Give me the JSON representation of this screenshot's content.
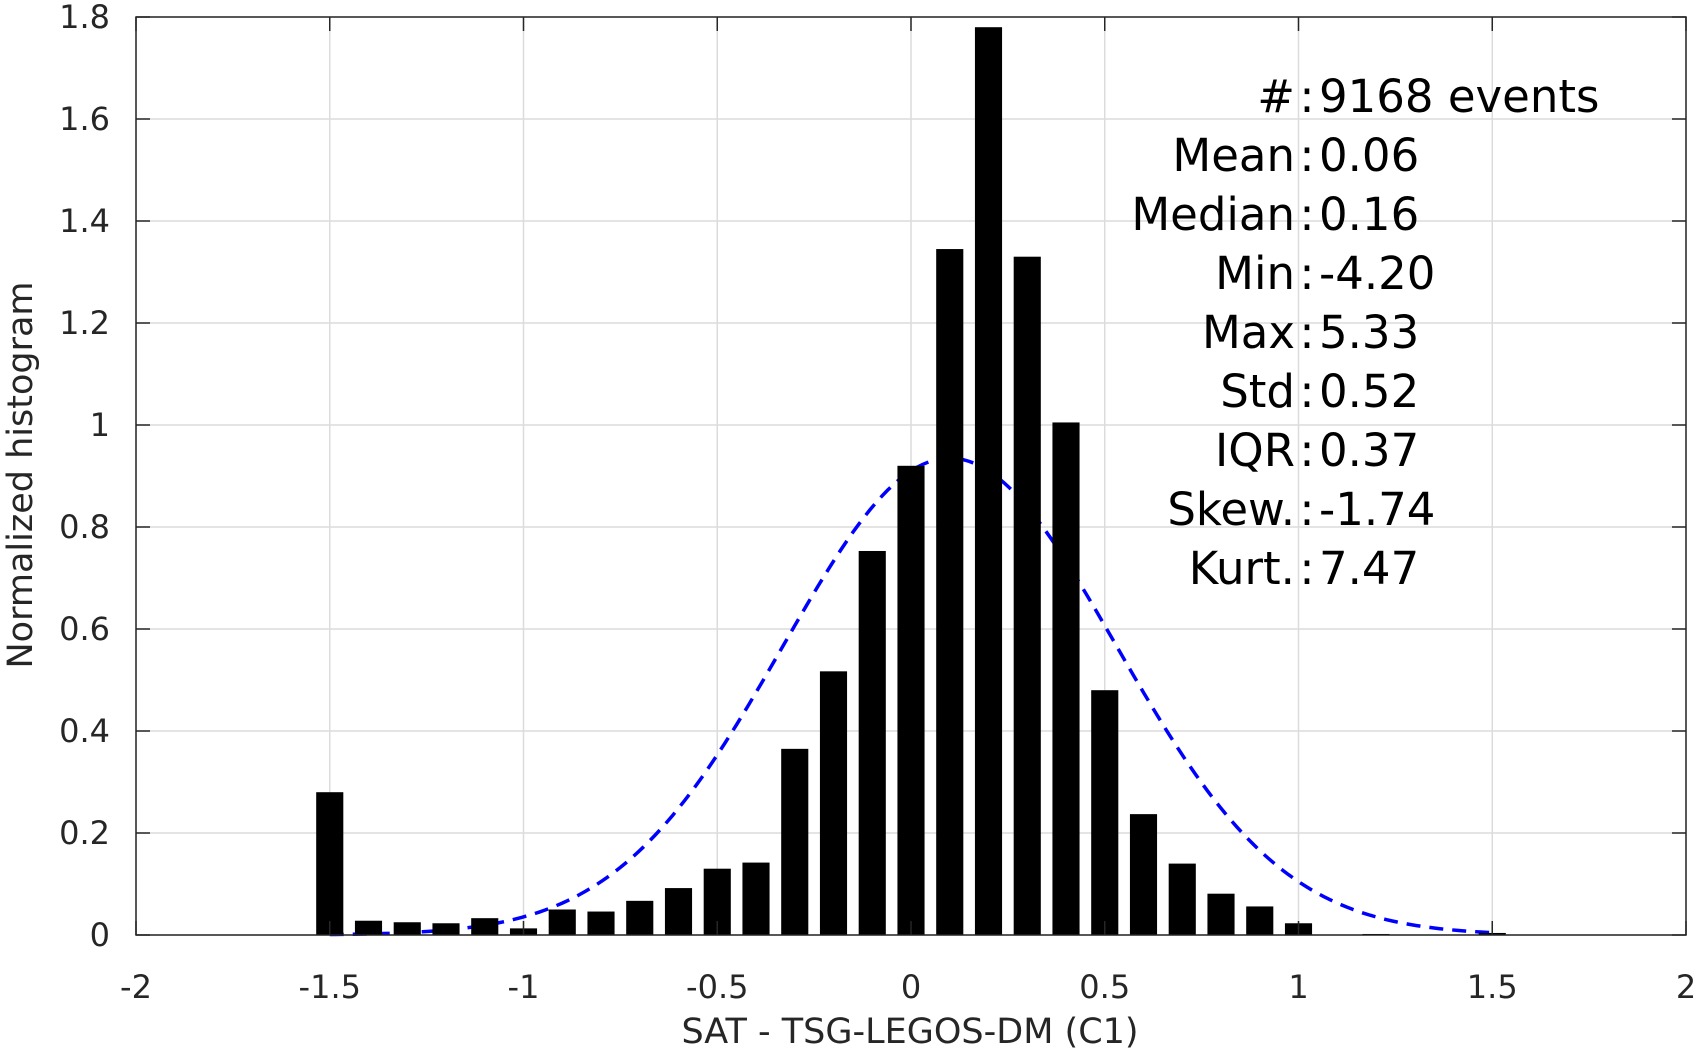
{
  "chart_data": {
    "type": "bar",
    "title": "",
    "xlabel": "SAT - TSG-LEGOS-DM (C1)",
    "ylabel": "Normalized histogram",
    "xlim": [
      -2,
      2
    ],
    "ylim": [
      0,
      1.8
    ],
    "xticks": [
      -2,
      -1.5,
      -1,
      -0.5,
      0,
      0.5,
      1,
      1.5,
      2
    ],
    "xtick_labels": [
      "-2",
      "-1.5",
      "-1",
      "-0.5",
      "0",
      "0.5",
      "1",
      "1.5",
      "2"
    ],
    "yticks": [
      0,
      0.2,
      0.4,
      0.6,
      0.8,
      1,
      1.2,
      1.4,
      1.6,
      1.8
    ],
    "ytick_labels": [
      "0",
      "0.2",
      "0.4",
      "0.6",
      "0.8",
      "1",
      "1.2",
      "1.4",
      "1.6",
      "1.8"
    ],
    "grid": true,
    "bar_width": 0.07,
    "bins": [
      {
        "x": -1.5,
        "y": 0.28
      },
      {
        "x": -1.4,
        "y": 0.028
      },
      {
        "x": -1.3,
        "y": 0.025
      },
      {
        "x": -1.2,
        "y": 0.023
      },
      {
        "x": -1.1,
        "y": 0.033
      },
      {
        "x": -1.0,
        "y": 0.013
      },
      {
        "x": -0.9,
        "y": 0.05
      },
      {
        "x": -0.8,
        "y": 0.046
      },
      {
        "x": -0.7,
        "y": 0.067
      },
      {
        "x": -0.6,
        "y": 0.092
      },
      {
        "x": -0.5,
        "y": 0.13
      },
      {
        "x": -0.4,
        "y": 0.142
      },
      {
        "x": -0.3,
        "y": 0.365
      },
      {
        "x": -0.2,
        "y": 0.517
      },
      {
        "x": -0.1,
        "y": 0.753
      },
      {
        "x": 0.0,
        "y": 0.92
      },
      {
        "x": 0.1,
        "y": 1.345
      },
      {
        "x": 0.2,
        "y": 1.78
      },
      {
        "x": 0.3,
        "y": 1.33
      },
      {
        "x": 0.4,
        "y": 1.005
      },
      {
        "x": 0.5,
        "y": 0.48
      },
      {
        "x": 0.6,
        "y": 0.237
      },
      {
        "x": 0.7,
        "y": 0.14
      },
      {
        "x": 0.8,
        "y": 0.081
      },
      {
        "x": 0.9,
        "y": 0.056
      },
      {
        "x": 1.0,
        "y": 0.023
      },
      {
        "x": 1.1,
        "y": 0.0
      },
      {
        "x": 1.2,
        "y": 0.002
      },
      {
        "x": 1.3,
        "y": 0.0
      },
      {
        "x": 1.4,
        "y": 0.0
      },
      {
        "x": 1.5,
        "y": 0.004
      }
    ],
    "fit_curve": {
      "style": "dashed",
      "color": "#0000ff",
      "x_range": [
        -1.5,
        1.5
      ],
      "mean": 0.1,
      "std": 0.43,
      "peak": 0.935
    },
    "stats": [
      {
        "label": "#  ",
        "value": "9168 events"
      },
      {
        "label": "Mean",
        "value": "0.06"
      },
      {
        "label": "Median",
        "value": "0.16"
      },
      {
        "label": "Min",
        "value": "-4.20"
      },
      {
        "label": "Max",
        "value": "5.33"
      },
      {
        "label": "Std",
        "value": "0.52"
      },
      {
        "label": "IQR",
        "value": "0.37"
      },
      {
        "label": "Skew.",
        "value": "-1.74"
      },
      {
        "label": "Kurt.",
        "value": "7.47"
      }
    ],
    "stats_placement": "top-right"
  }
}
